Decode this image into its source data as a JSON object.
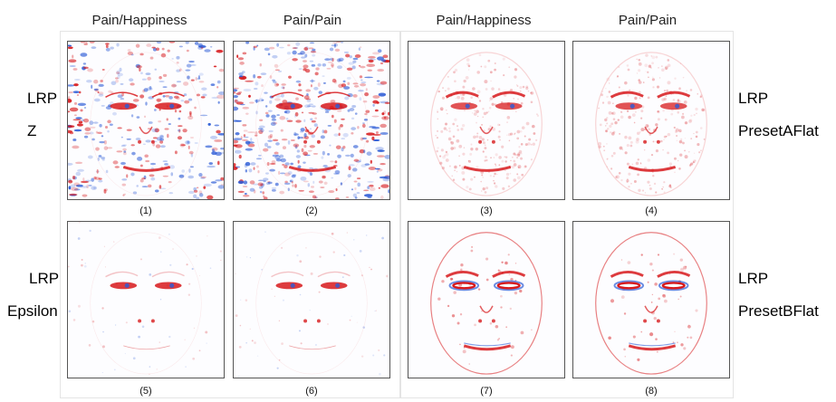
{
  "figure": {
    "column_headers": [
      "Pain/Happiness",
      "Pain/Pain",
      "Pain/Happiness",
      "Pain/Pain"
    ],
    "row_labels": {
      "top_left": [
        "LRP",
        "Z"
      ],
      "top_right": [
        "LRP",
        "PresetAFlat"
      ],
      "bottom_left": [
        "LRP",
        "Epsilon"
      ],
      "bottom_right": [
        "LRP",
        "PresetBFlat"
      ]
    },
    "panels": [
      {
        "caption": "(1)",
        "method": "LRP Z",
        "condition": "Pain/Happiness",
        "style": "noisy"
      },
      {
        "caption": "(2)",
        "method": "LRP Z",
        "condition": "Pain/Pain",
        "style": "noisy"
      },
      {
        "caption": "(3)",
        "method": "LRP PresetAFlat",
        "condition": "Pain/Happiness",
        "style": "red"
      },
      {
        "caption": "(4)",
        "method": "LRP PresetAFlat",
        "condition": "Pain/Pain",
        "style": "red"
      },
      {
        "caption": "(5)",
        "method": "LRP Epsilon",
        "condition": "Pain/Happiness",
        "style": "sparse"
      },
      {
        "caption": "(6)",
        "method": "LRP Epsilon",
        "condition": "Pain/Pain",
        "style": "sparse"
      },
      {
        "caption": "(7)",
        "method": "LRP PresetBFlat",
        "condition": "Pain/Happiness",
        "style": "outline"
      },
      {
        "caption": "(8)",
        "method": "LRP PresetBFlat",
        "condition": "Pain/Pain",
        "style": "outline"
      }
    ],
    "colors": {
      "positive": "#d7191c",
      "negative": "#2c5bd6",
      "background": "#ffffff"
    }
  }
}
